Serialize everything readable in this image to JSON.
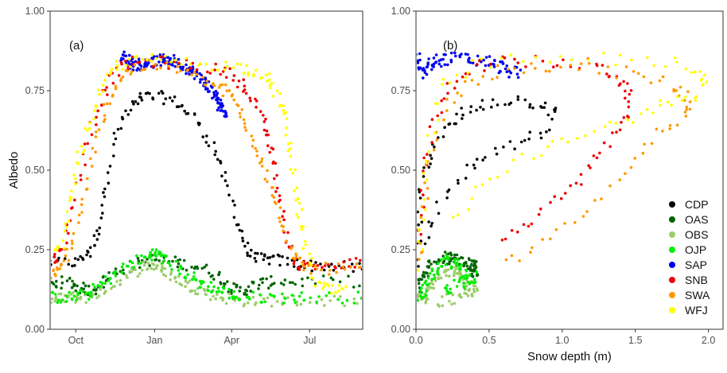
{
  "colors": {
    "CDP": "#000000",
    "OAS": "#006400",
    "OBS": "#9ACD6A",
    "OJP": "#00EE00",
    "SAP": "#0000EE",
    "SNB": "#EE0000",
    "SWA": "#FF9900",
    "WFJ": "#FFFF00"
  },
  "legend": [
    "CDP",
    "OAS",
    "OBS",
    "OJP",
    "SAP",
    "SNB",
    "SWA",
    "WFJ"
  ],
  "chart_data": [
    {
      "type": "scatter",
      "panel": "(a)",
      "xlabel": "",
      "ylabel": "Albedo",
      "x_unit": "day of snow year starting 1 Sep (Oct=30, Jan=122, Apr=212, Jul=303)",
      "xlim": [
        0,
        365
      ],
      "ylim": [
        0,
        1
      ],
      "x_ticks": [
        30,
        122,
        212,
        303
      ],
      "x_tick_labels": [
        "Oct",
        "Jan",
        "Apr",
        "Jul"
      ],
      "y_ticks": [
        0,
        0.25,
        0.5,
        0.75,
        1.0
      ],
      "y_tick_labels": [
        "0.00",
        "0.25",
        "0.50",
        "0.75",
        "1.00"
      ],
      "series": [
        {
          "name": "CDP",
          "curve": [
            [
              0,
              0.21
            ],
            [
              30,
              0.21
            ],
            [
              45,
              0.24
            ],
            [
              55,
              0.3
            ],
            [
              65,
              0.45
            ],
            [
              78,
              0.62
            ],
            [
              95,
              0.7
            ],
            [
              110,
              0.73
            ],
            [
              130,
              0.73
            ],
            [
              150,
              0.71
            ],
            [
              170,
              0.66
            ],
            [
              190,
              0.58
            ],
            [
              205,
              0.47
            ],
            [
              220,
              0.33
            ],
            [
              230,
              0.24
            ],
            [
              245,
              0.22
            ],
            [
              260,
              0.22
            ],
            [
              280,
              0.21
            ],
            [
              300,
              0.2
            ],
            [
              330,
              0.2
            ],
            [
              365,
              0.19
            ]
          ]
        },
        {
          "name": "OAS",
          "curve": [
            [
              0,
              0.14
            ],
            [
              20,
              0.15
            ],
            [
              35,
              0.13
            ],
            [
              50,
              0.12
            ],
            [
              70,
              0.17
            ],
            [
              95,
              0.2
            ],
            [
              120,
              0.22
            ],
            [
              145,
              0.21
            ],
            [
              170,
              0.2
            ],
            [
              195,
              0.17
            ],
            [
              210,
              0.13
            ],
            [
              225,
              0.12
            ],
            [
              240,
              0.14
            ],
            [
              260,
              0.15
            ],
            [
              300,
              0.15
            ],
            [
              365,
              0.15
            ]
          ]
        },
        {
          "name": "OBS",
          "curve": [
            [
              0,
              0.09
            ],
            [
              20,
              0.1
            ],
            [
              40,
              0.1
            ],
            [
              60,
              0.12
            ],
            [
              85,
              0.16
            ],
            [
              110,
              0.2
            ],
            [
              125,
              0.2
            ],
            [
              140,
              0.17
            ],
            [
              160,
              0.14
            ],
            [
              180,
              0.12
            ],
            [
              200,
              0.1
            ],
            [
              225,
              0.09
            ],
            [
              260,
              0.09
            ],
            [
              300,
              0.09
            ],
            [
              365,
              0.09
            ]
          ]
        },
        {
          "name": "OJP",
          "curve": [
            [
              0,
              0.1
            ],
            [
              25,
              0.1
            ],
            [
              45,
              0.11
            ],
            [
              65,
              0.15
            ],
            [
              90,
              0.2
            ],
            [
              115,
              0.23
            ],
            [
              125,
              0.24
            ],
            [
              140,
              0.21
            ],
            [
              160,
              0.17
            ],
            [
              180,
              0.14
            ],
            [
              200,
              0.12
            ],
            [
              220,
              0.1
            ],
            [
              260,
              0.1
            ],
            [
              300,
              0.1
            ],
            [
              365,
              0.1
            ]
          ]
        },
        {
          "name": "SAP",
          "curve": [
            [
              82,
              0.86
            ],
            [
              100,
              0.83
            ],
            [
              120,
              0.84
            ],
            [
              140,
              0.85
            ],
            [
              160,
              0.82
            ],
            [
              180,
              0.78
            ],
            [
              195,
              0.72
            ],
            [
              205,
              0.68
            ]
          ]
        },
        {
          "name": "SNB",
          "curve": [
            [
              0,
              0.21
            ],
            [
              10,
              0.23
            ],
            [
              20,
              0.3
            ],
            [
              35,
              0.48
            ],
            [
              50,
              0.65
            ],
            [
              65,
              0.76
            ],
            [
              80,
              0.82
            ],
            [
              100,
              0.84
            ],
            [
              130,
              0.84
            ],
            [
              160,
              0.83
            ],
            [
              190,
              0.82
            ],
            [
              215,
              0.8
            ],
            [
              230,
              0.75
            ],
            [
              245,
              0.68
            ],
            [
              255,
              0.6
            ],
            [
              262,
              0.5
            ],
            [
              270,
              0.38
            ],
            [
              278,
              0.26
            ],
            [
              290,
              0.2
            ],
            [
              310,
              0.2
            ],
            [
              340,
              0.2
            ],
            [
              365,
              0.21
            ]
          ]
        },
        {
          "name": "SWA",
          "curve": [
            [
              0,
              0.17
            ],
            [
              10,
              0.18
            ],
            [
              25,
              0.26
            ],
            [
              40,
              0.42
            ],
            [
              55,
              0.6
            ],
            [
              70,
              0.73
            ],
            [
              85,
              0.8
            ],
            [
              110,
              0.83
            ],
            [
              150,
              0.82
            ],
            [
              180,
              0.78
            ],
            [
              200,
              0.76
            ],
            [
              215,
              0.72
            ],
            [
              230,
              0.63
            ],
            [
              245,
              0.55
            ],
            [
              258,
              0.45
            ],
            [
              270,
              0.33
            ],
            [
              285,
              0.22
            ],
            [
              300,
              0.19
            ],
            [
              330,
              0.19
            ],
            [
              365,
              0.19
            ]
          ]
        },
        {
          "name": "WFJ",
          "curve": [
            [
              0,
              0.22
            ],
            [
              15,
              0.27
            ],
            [
              25,
              0.42
            ],
            [
              35,
              0.55
            ],
            [
              50,
              0.68
            ],
            [
              65,
              0.78
            ],
            [
              80,
              0.83
            ],
            [
              110,
              0.85
            ],
            [
              150,
              0.84
            ],
            [
              200,
              0.83
            ],
            [
              230,
              0.82
            ],
            [
              250,
              0.8
            ],
            [
              265,
              0.74
            ],
            [
              275,
              0.65
            ],
            [
              282,
              0.52
            ],
            [
              290,
              0.38
            ],
            [
              298,
              0.26
            ],
            [
              310,
              0.14
            ],
            [
              330,
              0.12
            ],
            [
              345,
              0.12
            ]
          ]
        }
      ]
    },
    {
      "type": "scatter",
      "panel": "(b)",
      "xlabel": "Snow depth (m)",
      "ylabel": "",
      "xlim": [
        0,
        2.1
      ],
      "ylim": [
        0,
        1
      ],
      "x_ticks": [
        0,
        0.5,
        1.0,
        1.5,
        2.0
      ],
      "x_tick_labels": [
        "0.0",
        "0.5",
        "1.0",
        "1.5",
        "2.0"
      ],
      "y_ticks": [
        0,
        0.25,
        0.5,
        0.75,
        1.0
      ],
      "y_tick_labels": [
        "0.00",
        "0.25",
        "0.50",
        "0.75",
        "1.00"
      ],
      "series": [
        {
          "name": "CDP",
          "curve": [
            [
              0,
              0.2
            ],
            [
              0.02,
              0.35
            ],
            [
              0.05,
              0.48
            ],
            [
              0.1,
              0.58
            ],
            [
              0.2,
              0.63
            ],
            [
              0.3,
              0.67
            ],
            [
              0.4,
              0.7
            ],
            [
              0.55,
              0.72
            ],
            [
              0.7,
              0.72
            ],
            [
              0.85,
              0.71
            ],
            [
              0.95,
              0.7
            ],
            [
              0.9,
              0.62
            ],
            [
              0.75,
              0.6
            ],
            [
              0.55,
              0.56
            ],
            [
              0.4,
              0.52
            ],
            [
              0.25,
              0.45
            ],
            [
              0.12,
              0.35
            ],
            [
              0.04,
              0.25
            ]
          ]
        },
        {
          "name": "OAS",
          "curve": [
            [
              0.02,
              0.13
            ],
            [
              0.05,
              0.17
            ],
            [
              0.1,
              0.2
            ],
            [
              0.18,
              0.22
            ],
            [
              0.25,
              0.23
            ],
            [
              0.32,
              0.21
            ],
            [
              0.38,
              0.2
            ],
            [
              0.4,
              0.19
            ],
            [
              0.38,
              0.17
            ]
          ]
        },
        {
          "name": "OBS",
          "curve": [
            [
              0.02,
              0.09
            ],
            [
              0.05,
              0.1
            ],
            [
              0.1,
              0.13
            ],
            [
              0.18,
              0.17
            ],
            [
              0.25,
              0.2
            ],
            [
              0.32,
              0.17
            ],
            [
              0.38,
              0.13
            ],
            [
              0.4,
              0.11
            ],
            [
              0.3,
              0.1
            ],
            [
              0.15,
              0.09
            ]
          ]
        },
        {
          "name": "OJP",
          "curve": [
            [
              0.02,
              0.1
            ],
            [
              0.06,
              0.13
            ],
            [
              0.12,
              0.18
            ],
            [
              0.2,
              0.22
            ],
            [
              0.28,
              0.2
            ],
            [
              0.35,
              0.17
            ],
            [
              0.4,
              0.16
            ],
            [
              0.3,
              0.14
            ],
            [
              0.18,
              0.12
            ]
          ]
        },
        {
          "name": "SAP",
          "curve": [
            [
              0,
              0.86
            ],
            [
              0.05,
              0.8
            ],
            [
              0.12,
              0.84
            ],
            [
              0.2,
              0.85
            ],
            [
              0.35,
              0.85
            ],
            [
              0.5,
              0.84
            ],
            [
              0.6,
              0.82
            ],
            [
              0.7,
              0.8
            ]
          ]
        },
        {
          "name": "SNB",
          "curve": [
            [
              0.02,
              0.25
            ],
            [
              0.05,
              0.45
            ],
            [
              0.1,
              0.62
            ],
            [
              0.2,
              0.75
            ],
            [
              0.35,
              0.82
            ],
            [
              0.6,
              0.84
            ],
            [
              0.9,
              0.84
            ],
            [
              1.2,
              0.83
            ],
            [
              1.35,
              0.8
            ],
            [
              1.45,
              0.75
            ],
            [
              1.45,
              0.68
            ],
            [
              1.35,
              0.6
            ],
            [
              1.2,
              0.52
            ],
            [
              1.0,
              0.42
            ],
            [
              0.8,
              0.35
            ],
            [
              0.6,
              0.27
            ]
          ]
        },
        {
          "name": "SWA",
          "curve": [
            [
              0.02,
              0.2
            ],
            [
              0.05,
              0.35
            ],
            [
              0.1,
              0.55
            ],
            [
              0.2,
              0.7
            ],
            [
              0.4,
              0.78
            ],
            [
              0.6,
              0.82
            ],
            [
              0.9,
              0.83
            ],
            [
              1.2,
              0.82
            ],
            [
              1.5,
              0.8
            ],
            [
              1.75,
              0.77
            ],
            [
              1.85,
              0.73
            ],
            [
              1.85,
              0.68
            ],
            [
              1.65,
              0.62
            ],
            [
              1.45,
              0.5
            ],
            [
              1.2,
              0.38
            ],
            [
              0.9,
              0.27
            ],
            [
              0.6,
              0.2
            ]
          ]
        },
        {
          "name": "WFJ",
          "curve": [
            [
              0.02,
              0.2
            ],
            [
              0.05,
              0.4
            ],
            [
              0.1,
              0.6
            ],
            [
              0.2,
              0.78
            ],
            [
              0.4,
              0.83
            ],
            [
              0.8,
              0.85
            ],
            [
              1.3,
              0.85
            ],
            [
              1.7,
              0.84
            ],
            [
              1.95,
              0.82
            ],
            [
              1.97,
              0.76
            ],
            [
              1.85,
              0.72
            ],
            [
              1.65,
              0.7
            ],
            [
              1.4,
              0.65
            ],
            [
              1.1,
              0.6
            ],
            [
              0.8,
              0.55
            ],
            [
              0.5,
              0.47
            ],
            [
              0.25,
              0.35
            ]
          ]
        }
      ]
    }
  ]
}
